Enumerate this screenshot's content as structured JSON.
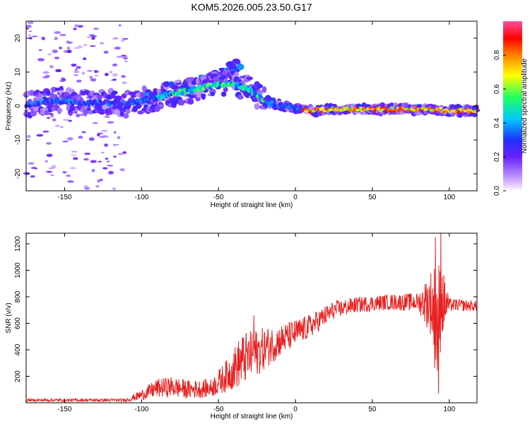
{
  "title": "KOM5.2026.005.23.50.G17",
  "colorbar": {
    "label": "Normalized spectral amplitude",
    "ticks": [
      "0.0",
      "0.2",
      "0.4",
      "0.6",
      "0.8"
    ],
    "tick_values": [
      0.0,
      0.2,
      0.4,
      0.6,
      0.8
    ],
    "range": [
      0,
      1
    ],
    "colors": [
      "#ffffff",
      "#d8b8ff",
      "#a070ff",
      "#6a20ff",
      "#2030ff",
      "#00c8ff",
      "#20ff60",
      "#ffff00",
      "#ff8000",
      "#ff0000",
      "#ff00a0",
      "#ff4fa0"
    ]
  },
  "chart_data": [
    {
      "type": "heatmap",
      "title": "KOM5.2026.005.23.50.G17",
      "xlabel": "Height of straight line (km)",
      "ylabel": "Frequency (Hz)",
      "xlim": [
        -175,
        118
      ],
      "ylim": [
        -25,
        25
      ],
      "x_ticks": [
        -150,
        -100,
        -50,
        0,
        50,
        100
      ],
      "y_ticks": [
        -20,
        -10,
        0,
        10,
        20
      ],
      "x_tick_labels": [
        "-150",
        "-100",
        "-50",
        "0",
        "50",
        "100"
      ],
      "y_tick_labels": [
        "-20",
        "-10",
        "0",
        "10",
        "20"
      ],
      "ridge": [
        {
          "x": -175,
          "y": 0.5
        },
        {
          "x": -160,
          "y": 1.5
        },
        {
          "x": -150,
          "y": 1.5
        },
        {
          "x": -140,
          "y": 0.5
        },
        {
          "x": -130,
          "y": 1.0
        },
        {
          "x": -120,
          "y": 1.0
        },
        {
          "x": -110,
          "y": 0.5
        },
        {
          "x": -100,
          "y": 1.5
        },
        {
          "x": -90,
          "y": 2.5
        },
        {
          "x": -80,
          "y": 3.5
        },
        {
          "x": -70,
          "y": 4.5
        },
        {
          "x": -60,
          "y": 5.5
        },
        {
          "x": -50,
          "y": 6.5
        },
        {
          "x": -40,
          "y": 6.5
        },
        {
          "x": -30,
          "y": 5.0
        },
        {
          "x": -20,
          "y": 1.5
        },
        {
          "x": -10,
          "y": 0.0
        },
        {
          "x": 0,
          "y": -0.5
        },
        {
          "x": 10,
          "y": -1.5
        },
        {
          "x": 20,
          "y": -1.0
        },
        {
          "x": 30,
          "y": -1.0
        },
        {
          "x": 50,
          "y": -1.0
        },
        {
          "x": 70,
          "y": -1.0
        },
        {
          "x": 90,
          "y": -1.0
        },
        {
          "x": 100,
          "y": -1.5
        },
        {
          "x": 118,
          "y": -1.5
        }
      ],
      "upper_branch": [
        {
          "x": -100,
          "y": 3
        },
        {
          "x": -80,
          "y": 5
        },
        {
          "x": -60,
          "y": 7.5
        },
        {
          "x": -45,
          "y": 10
        },
        {
          "x": -35,
          "y": 13
        }
      ],
      "high_amplitude_segment": {
        "x_start": 5,
        "x_end": 118,
        "y": -1.0,
        "amplitude": 0.95
      },
      "scatter_region": {
        "x_range": [
          -175,
          -110
        ],
        "y_range": [
          -25,
          25
        ],
        "amplitude": 0.15
      }
    },
    {
      "type": "line",
      "xlabel": "Height of straight line (km)",
      "ylabel": "SNR (v/v)",
      "xlim": [
        -175,
        118
      ],
      "ylim": [
        0,
        1280
      ],
      "x_ticks": [
        -150,
        -100,
        -50,
        0,
        50,
        100
      ],
      "y_ticks": [
        200,
        400,
        600,
        800,
        1000,
        1200
      ],
      "x_tick_labels": [
        "-150",
        "-100",
        "-50",
        "0",
        "50",
        "100"
      ],
      "y_tick_labels": [
        "200",
        "400",
        "600",
        "800",
        "1000",
        "1200"
      ],
      "color": "#e82020",
      "series": [
        {
          "name": "SNR",
          "envelope": [
            {
              "x": -175,
              "mean": 20,
              "noise": 10
            },
            {
              "x": -110,
              "mean": 20,
              "noise": 12
            },
            {
              "x": -100,
              "mean": 60,
              "noise": 40
            },
            {
              "x": -90,
              "mean": 110,
              "noise": 70
            },
            {
              "x": -80,
              "mean": 120,
              "noise": 80
            },
            {
              "x": -70,
              "mean": 100,
              "noise": 70
            },
            {
              "x": -55,
              "mean": 110,
              "noise": 70
            },
            {
              "x": -45,
              "mean": 200,
              "noise": 120
            },
            {
              "x": -35,
              "mean": 320,
              "noise": 200
            },
            {
              "x": -25,
              "mean": 380,
              "noise": 180
            },
            {
              "x": -10,
              "mean": 470,
              "noise": 120
            },
            {
              "x": 10,
              "mean": 580,
              "noise": 90
            },
            {
              "x": 25,
              "mean": 700,
              "noise": 70
            },
            {
              "x": 40,
              "mean": 740,
              "noise": 60
            },
            {
              "x": 60,
              "mean": 760,
              "noise": 60
            },
            {
              "x": 80,
              "mean": 760,
              "noise": 70
            },
            {
              "x": 88,
              "mean": 760,
              "noise": 250
            },
            {
              "x": 92,
              "mean": 600,
              "noise": 500
            },
            {
              "x": 95,
              "mean": 760,
              "noise": 300
            },
            {
              "x": 100,
              "mean": 740,
              "noise": 50
            },
            {
              "x": 118,
              "mean": 730,
              "noise": 40
            }
          ],
          "peaks": [
            {
              "x": -27,
              "y": 660
            },
            {
              "x": 91,
              "y": 1250
            },
            {
              "x": 93,
              "y": 70
            },
            {
              "x": 94.5,
              "y": 1280
            }
          ]
        }
      ]
    }
  ]
}
